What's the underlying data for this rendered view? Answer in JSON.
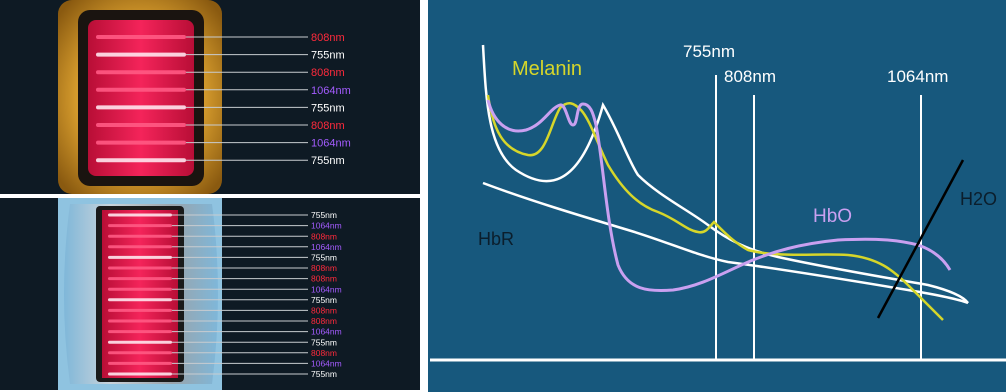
{
  "colors": {
    "755nm": "#ffffff",
    "808nm": "#ff2a3c",
    "1064nm": "#a45cff",
    "melanin": "#d6d62a",
    "hbo": "#c9a0f0",
    "hbr": "#ffffff",
    "h2o": "#000000",
    "chart_bg": "#17587d"
  },
  "top_panel": {
    "wavelength_labels": [
      "808nm",
      "755nm",
      "808nm",
      "1064nm",
      "755nm",
      "808nm",
      "1064nm",
      "755nm"
    ]
  },
  "bottom_panel": {
    "wavelength_labels": [
      "755nm",
      "1064nm",
      "808nm",
      "1064nm",
      "755nm",
      "808nm",
      "808nm",
      "1064nm",
      "755nm",
      "808nm",
      "808nm",
      "1064nm",
      "755nm",
      "808nm",
      "1064nm",
      "755nm"
    ]
  },
  "chart": {
    "wavelength_markers": [
      "755nm",
      "808nm",
      "1064nm"
    ],
    "curve_labels": {
      "melanin": "Melanin",
      "hbo": "HbO",
      "hbr": "HbR",
      "h2o": "H2O"
    }
  }
}
